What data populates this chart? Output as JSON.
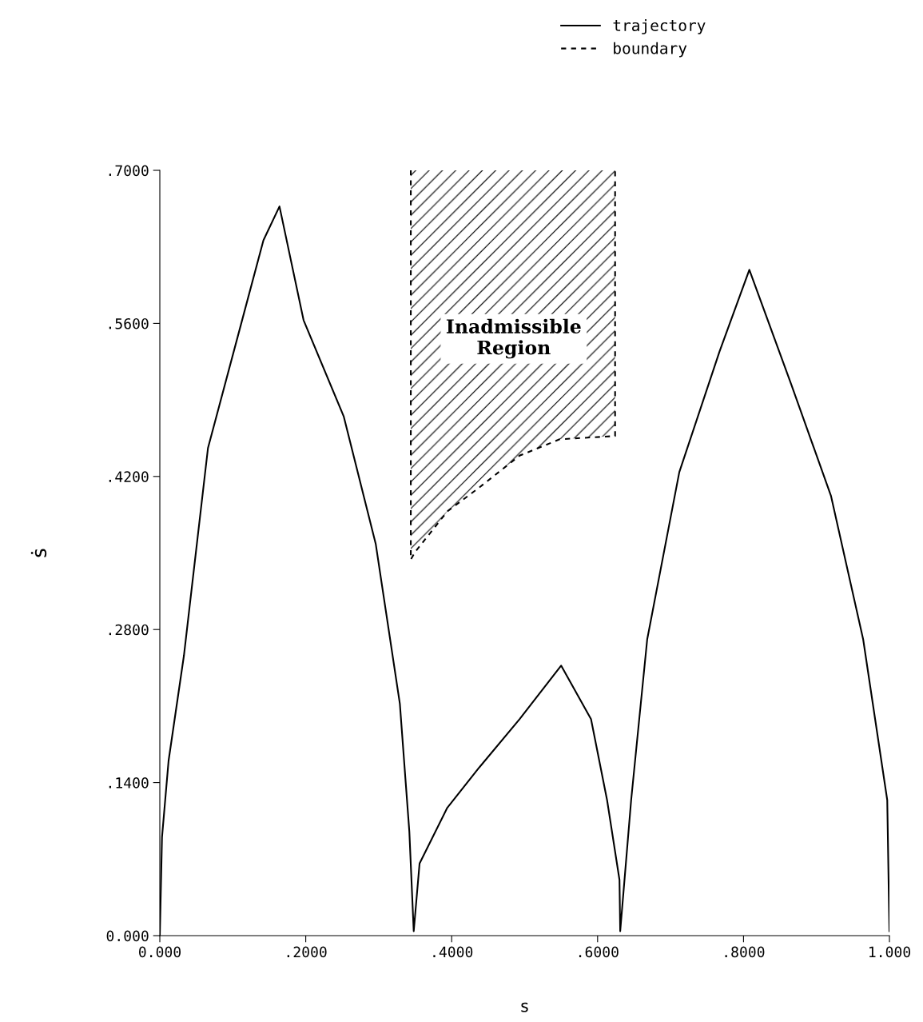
{
  "chart_data": {
    "type": "line",
    "xlabel": "s",
    "ylabel": "ṡ",
    "legend": "top right",
    "xlim": [
      0,
      1
    ],
    "ylim": [
      0,
      0.7
    ],
    "xticks": [
      {
        "value": 0,
        "label": "0.000"
      },
      {
        "value": 0.2,
        "label": ".2000"
      },
      {
        "value": 0.4,
        "label": ".4000"
      },
      {
        "value": 0.6,
        "label": ".6000"
      },
      {
        "value": 0.8,
        "label": ".8000"
      },
      {
        "value": 1,
        "label": "1.000"
      }
    ],
    "yticks": [
      {
        "value": 0,
        "label": "0.000"
      },
      {
        "value": 0.14,
        "label": ".1400"
      },
      {
        "value": 0.28,
        "label": ".2800"
      },
      {
        "value": 0.42,
        "label": ".4200"
      },
      {
        "value": 0.56,
        "label": ".5600"
      },
      {
        "value": 0.7,
        "label": ".7000"
      }
    ],
    "series": [
      {
        "name": "trajectory",
        "color": "#000000",
        "line_style": "solid",
        "x": [
          0,
          0.003,
          0.012,
          0.033,
          0.066,
          0.11,
          0.142,
          0.164,
          0.197,
          0.252,
          0.296,
          0.329,
          0.342,
          0.348,
          0.356,
          0.394,
          0.438,
          0.493,
          0.55,
          0.591,
          0.613,
          0.63,
          0.631,
          0.646,
          0.668,
          0.712,
          0.767,
          0.808,
          0.865,
          0.92,
          0.964,
          0.997,
          1.0
        ],
        "values": [
          0,
          0.09,
          0.16,
          0.256,
          0.446,
          0.556,
          0.636,
          0.667,
          0.563,
          0.475,
          0.358,
          0.212,
          0.095,
          0.004,
          0.066,
          0.117,
          0.154,
          0.198,
          0.247,
          0.198,
          0.124,
          0.051,
          0.004,
          0.124,
          0.271,
          0.424,
          0.534,
          0.609,
          0.505,
          0.402,
          0.271,
          0.124,
          0.004
        ]
      },
      {
        "name": "boundary",
        "color": "#000000",
        "line_style": "dashed",
        "x": [
          0.344,
          0.344,
          0.35,
          0.394,
          0.438,
          0.493,
          0.548,
          0.624,
          0.624
        ],
        "values": [
          0.7,
          0.344,
          0.351,
          0.388,
          0.41,
          0.439,
          0.454,
          0.457,
          0.7
        ]
      }
    ],
    "annotations": [
      "Inadmissible\nRegion"
    ]
  }
}
